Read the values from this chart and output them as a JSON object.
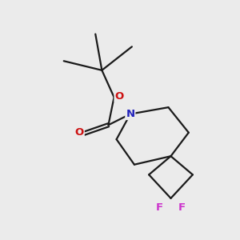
{
  "bg_color": "#ebebeb",
  "bond_color": "#1a1a1a",
  "N_color": "#2222bb",
  "O_color": "#cc1111",
  "F_color": "#cc33cc",
  "line_width": 1.6,
  "figsize": [
    3.0,
    3.0
  ],
  "dpi": 100,
  "xlim": [
    0,
    10
  ],
  "ylim": [
    0,
    10
  ]
}
